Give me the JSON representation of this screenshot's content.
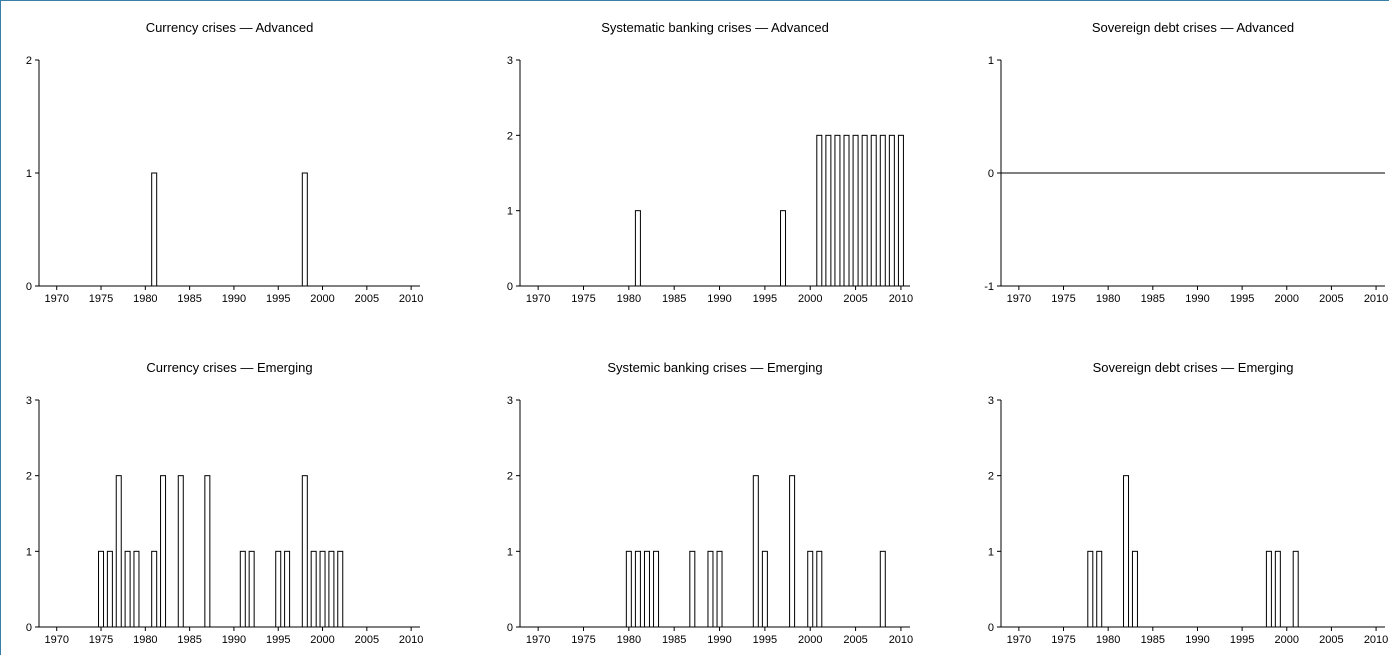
{
  "chart_data": [
    {
      "type": "bar",
      "title": "Currency crises — Advanced",
      "xlim": [
        1968,
        2011
      ],
      "ylim": [
        0,
        2
      ],
      "yticks": [
        0,
        1,
        2
      ],
      "xticks": [
        1970,
        1975,
        1980,
        1985,
        1990,
        1995,
        2000,
        2005,
        2010
      ],
      "bars": [
        {
          "x": 1981,
          "y": 1
        },
        {
          "x": 1998,
          "y": 1
        }
      ]
    },
    {
      "type": "bar",
      "title": "Systematic banking crises — Advanced",
      "xlim": [
        1968,
        2011
      ],
      "ylim": [
        0,
        3
      ],
      "yticks": [
        0,
        1,
        2,
        3
      ],
      "xticks": [
        1970,
        1975,
        1980,
        1985,
        1990,
        1995,
        2000,
        2005,
        2010
      ],
      "bars": [
        {
          "x": 1981,
          "y": 1
        },
        {
          "x": 1997,
          "y": 1
        },
        {
          "x": 2001,
          "y": 2
        },
        {
          "x": 2002,
          "y": 2
        },
        {
          "x": 2003,
          "y": 2
        },
        {
          "x": 2004,
          "y": 2
        },
        {
          "x": 2005,
          "y": 2
        },
        {
          "x": 2006,
          "y": 2
        },
        {
          "x": 2007,
          "y": 2
        },
        {
          "x": 2008,
          "y": 2
        },
        {
          "x": 2009,
          "y": 2
        },
        {
          "x": 2010,
          "y": 2
        }
      ]
    },
    {
      "type": "bar",
      "title": "Sovereign debt crises — Advanced",
      "xlim": [
        1968,
        2011
      ],
      "ylim": [
        -1,
        1
      ],
      "yticks": [
        -1,
        0,
        1
      ],
      "xticks": [
        1970,
        1975,
        1980,
        1985,
        1990,
        1995,
        2000,
        2005,
        2010
      ],
      "bars": []
    },
    {
      "type": "bar",
      "title": "Currency crises — Emerging",
      "xlim": [
        1968,
        2011
      ],
      "ylim": [
        0,
        3
      ],
      "yticks": [
        0,
        1,
        2,
        3
      ],
      "xticks": [
        1970,
        1975,
        1980,
        1985,
        1990,
        1995,
        2000,
        2005,
        2010
      ],
      "bars": [
        {
          "x": 1975,
          "y": 1
        },
        {
          "x": 1976,
          "y": 1
        },
        {
          "x": 1977,
          "y": 2
        },
        {
          "x": 1978,
          "y": 1
        },
        {
          "x": 1979,
          "y": 1
        },
        {
          "x": 1981,
          "y": 1
        },
        {
          "x": 1982,
          "y": 2
        },
        {
          "x": 1984,
          "y": 2
        },
        {
          "x": 1987,
          "y": 2
        },
        {
          "x": 1991,
          "y": 1
        },
        {
          "x": 1992,
          "y": 1
        },
        {
          "x": 1995,
          "y": 1
        },
        {
          "x": 1996,
          "y": 1
        },
        {
          "x": 1998,
          "y": 2
        },
        {
          "x": 1999,
          "y": 1
        },
        {
          "x": 2000,
          "y": 1
        },
        {
          "x": 2001,
          "y": 1
        },
        {
          "x": 2002,
          "y": 1
        }
      ]
    },
    {
      "type": "bar",
      "title": "Systemic banking crises — Emerging",
      "xlim": [
        1968,
        2011
      ],
      "ylim": [
        0,
        3
      ],
      "yticks": [
        0,
        1,
        2,
        3
      ],
      "xticks": [
        1970,
        1975,
        1980,
        1985,
        1990,
        1995,
        2000,
        2005,
        2010
      ],
      "bars": [
        {
          "x": 1980,
          "y": 1
        },
        {
          "x": 1981,
          "y": 1
        },
        {
          "x": 1982,
          "y": 1
        },
        {
          "x": 1983,
          "y": 1
        },
        {
          "x": 1987,
          "y": 1
        },
        {
          "x": 1989,
          "y": 1
        },
        {
          "x": 1990,
          "y": 1
        },
        {
          "x": 1994,
          "y": 2
        },
        {
          "x": 1995,
          "y": 1
        },
        {
          "x": 1998,
          "y": 2
        },
        {
          "x": 2000,
          "y": 1
        },
        {
          "x": 2001,
          "y": 1
        },
        {
          "x": 2008,
          "y": 1
        }
      ]
    },
    {
      "type": "bar",
      "title": "Sovereign debt crises — Emerging",
      "xlim": [
        1968,
        2011
      ],
      "ylim": [
        0,
        3
      ],
      "yticks": [
        0,
        1,
        2,
        3
      ],
      "xticks": [
        1970,
        1975,
        1980,
        1985,
        1990,
        1995,
        2000,
        2005,
        2010
      ],
      "bars": [
        {
          "x": 1978,
          "y": 1
        },
        {
          "x": 1979,
          "y": 1
        },
        {
          "x": 1982,
          "y": 2
        },
        {
          "x": 1983,
          "y": 1
        },
        {
          "x": 1998,
          "y": 1
        },
        {
          "x": 1999,
          "y": 1
        },
        {
          "x": 2001,
          "y": 1
        }
      ]
    }
  ]
}
